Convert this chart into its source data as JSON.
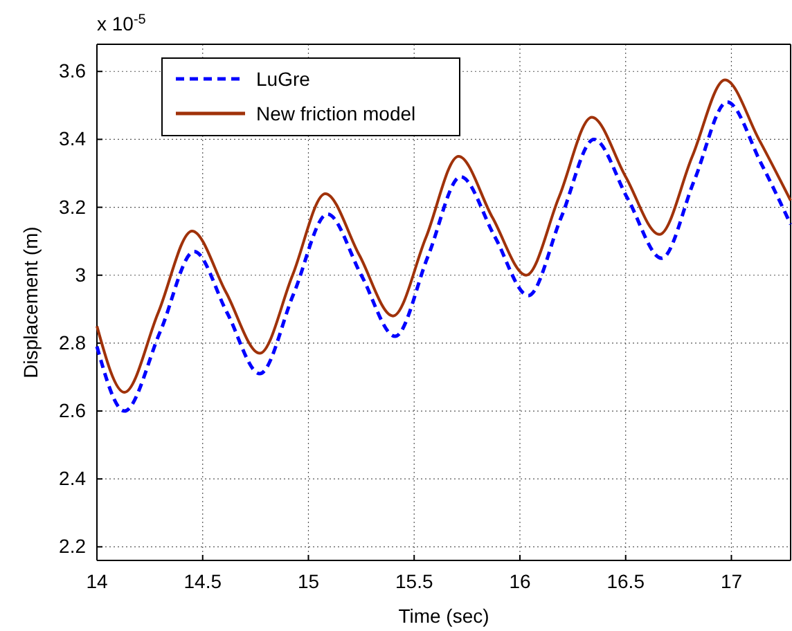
{
  "chart_data": {
    "type": "line",
    "xlabel": "Time (sec)",
    "ylabel": "Displacement (m)",
    "annotations": [
      "x 10$^{-5}$"
    ],
    "xlim": [
      14,
      17.28
    ],
    "xticks": [
      14,
      14.5,
      15,
      15.5,
      16,
      16.5,
      17
    ],
    "ylim": [
      2.16,
      3.68
    ],
    "yticks": [
      2.2,
      2.4,
      2.6,
      2.8,
      3,
      3.2,
      3.4,
      3.6
    ],
    "grid": true,
    "legend": "top left",
    "series": [
      {
        "name": "LuGre",
        "color": "#0000ff",
        "line_style": "dashed",
        "x": [
          14,
          14.13,
          14.3,
          14.46,
          14.615,
          14.77,
          14.93,
          15.09,
          15.25,
          15.41,
          15.565,
          15.72,
          15.88,
          16.04,
          16.195,
          16.35,
          16.51,
          16.67,
          16.825,
          16.98,
          17.14,
          17.28
        ],
        "values": [
          2.79,
          2.6,
          2.835,
          3.07,
          2.89,
          2.71,
          2.945,
          3.18,
          3.0,
          2.82,
          3.055,
          3.29,
          3.115,
          2.94,
          3.17,
          3.4,
          3.225,
          3.05,
          3.28,
          3.51,
          3.33,
          3.15
        ]
      },
      {
        "name": "New friction model",
        "color": "#a0320a",
        "line_style": "solid",
        "x": [
          14,
          14.13,
          14.29,
          14.45,
          14.61,
          14.77,
          14.925,
          15.08,
          15.24,
          15.4,
          15.555,
          15.71,
          15.87,
          16.03,
          16.185,
          16.34,
          16.5,
          16.66,
          16.815,
          16.97,
          17.13,
          17.28
        ],
        "values": [
          2.85,
          2.655,
          2.89,
          3.13,
          2.95,
          2.77,
          3.0,
          3.24,
          3.06,
          2.88,
          3.11,
          3.35,
          3.17,
          3.0,
          3.23,
          3.465,
          3.29,
          3.12,
          3.35,
          3.575,
          3.4,
          3.22
        ]
      }
    ]
  }
}
